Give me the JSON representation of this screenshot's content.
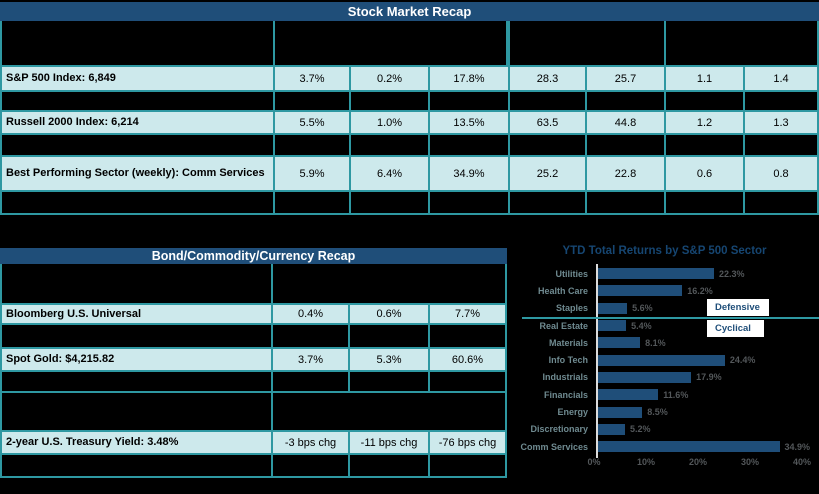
{
  "colors": {
    "background": "#000000",
    "title_bar_blue": "#1F4E79",
    "cell_fill": "#CDE9EC",
    "grid_teal": "#2E98A2",
    "bar_blue": "#1F4E79"
  },
  "stock_table": {
    "title": "Stock Market Recap",
    "rows": [
      {
        "label": "S&P 500 Index: 6,849",
        "values": [
          "3.7%",
          "0.2%",
          "17.8%",
          "28.3",
          "25.7",
          "1.1",
          "1.4"
        ]
      },
      {
        "label": "Russell 2000 Index: 6,214",
        "values": [
          "5.5%",
          "1.0%",
          "13.5%",
          "63.5",
          "44.8",
          "1.2",
          "1.3"
        ]
      },
      {
        "label": "Best Performing Sector (weekly): Comm Services",
        "values": [
          "5.9%",
          "6.4%",
          "34.9%",
          "25.2",
          "22.8",
          "0.6",
          "0.8"
        ]
      }
    ]
  },
  "bond_table": {
    "title": "Bond/Commodity/Currency Recap",
    "rows": [
      {
        "label": "Bloomberg U.S. Universal",
        "values": [
          "0.4%",
          "0.6%",
          "7.7%"
        ]
      },
      {
        "label": "Spot Gold: $4,215.82",
        "values": [
          "3.7%",
          "5.3%",
          "60.6%"
        ]
      },
      {
        "label": "2-year U.S. Treasury Yield: 3.48%",
        "values": [
          "-3 bps chg",
          "-11 bps chg",
          "-76 bps chg"
        ]
      }
    ]
  },
  "chart_data": {
    "type": "bar",
    "orientation": "horizontal",
    "title": "YTD Total Returns by S&P 500 Sector",
    "categories": [
      "Utilities",
      "Health Care",
      "Staples",
      "Real Estate",
      "Materials",
      "Info Tech",
      "Industrials",
      "Financials",
      "Energy",
      "Discretionary",
      "Comm Services"
    ],
    "values": [
      22.3,
      16.2,
      5.6,
      5.4,
      8.1,
      24.4,
      17.9,
      11.6,
      8.5,
      5.2,
      34.9
    ],
    "value_labels": [
      "22.3%",
      "16.2%",
      "5.6%",
      "5.4%",
      "8.1%",
      "24.4%",
      "17.9%",
      "11.6%",
      "8.5%",
      "5.2%",
      "34.9%"
    ],
    "x_ticks": [
      "0%",
      "10%",
      "20%",
      "30%",
      "40%"
    ],
    "xlim": [
      0,
      40
    ],
    "xlabel": "",
    "ylabel": "",
    "grid": false,
    "legend": [
      {
        "label": "Defensive"
      },
      {
        "label": "Cyclical"
      }
    ],
    "legend_note_groups": {
      "defensive": [
        "Utilities",
        "Health Care",
        "Staples"
      ],
      "cyclical": [
        "Real Estate",
        "Materials",
        "Info Tech",
        "Industrials",
        "Financials",
        "Energy",
        "Discretionary",
        "Comm Services"
      ]
    }
  }
}
